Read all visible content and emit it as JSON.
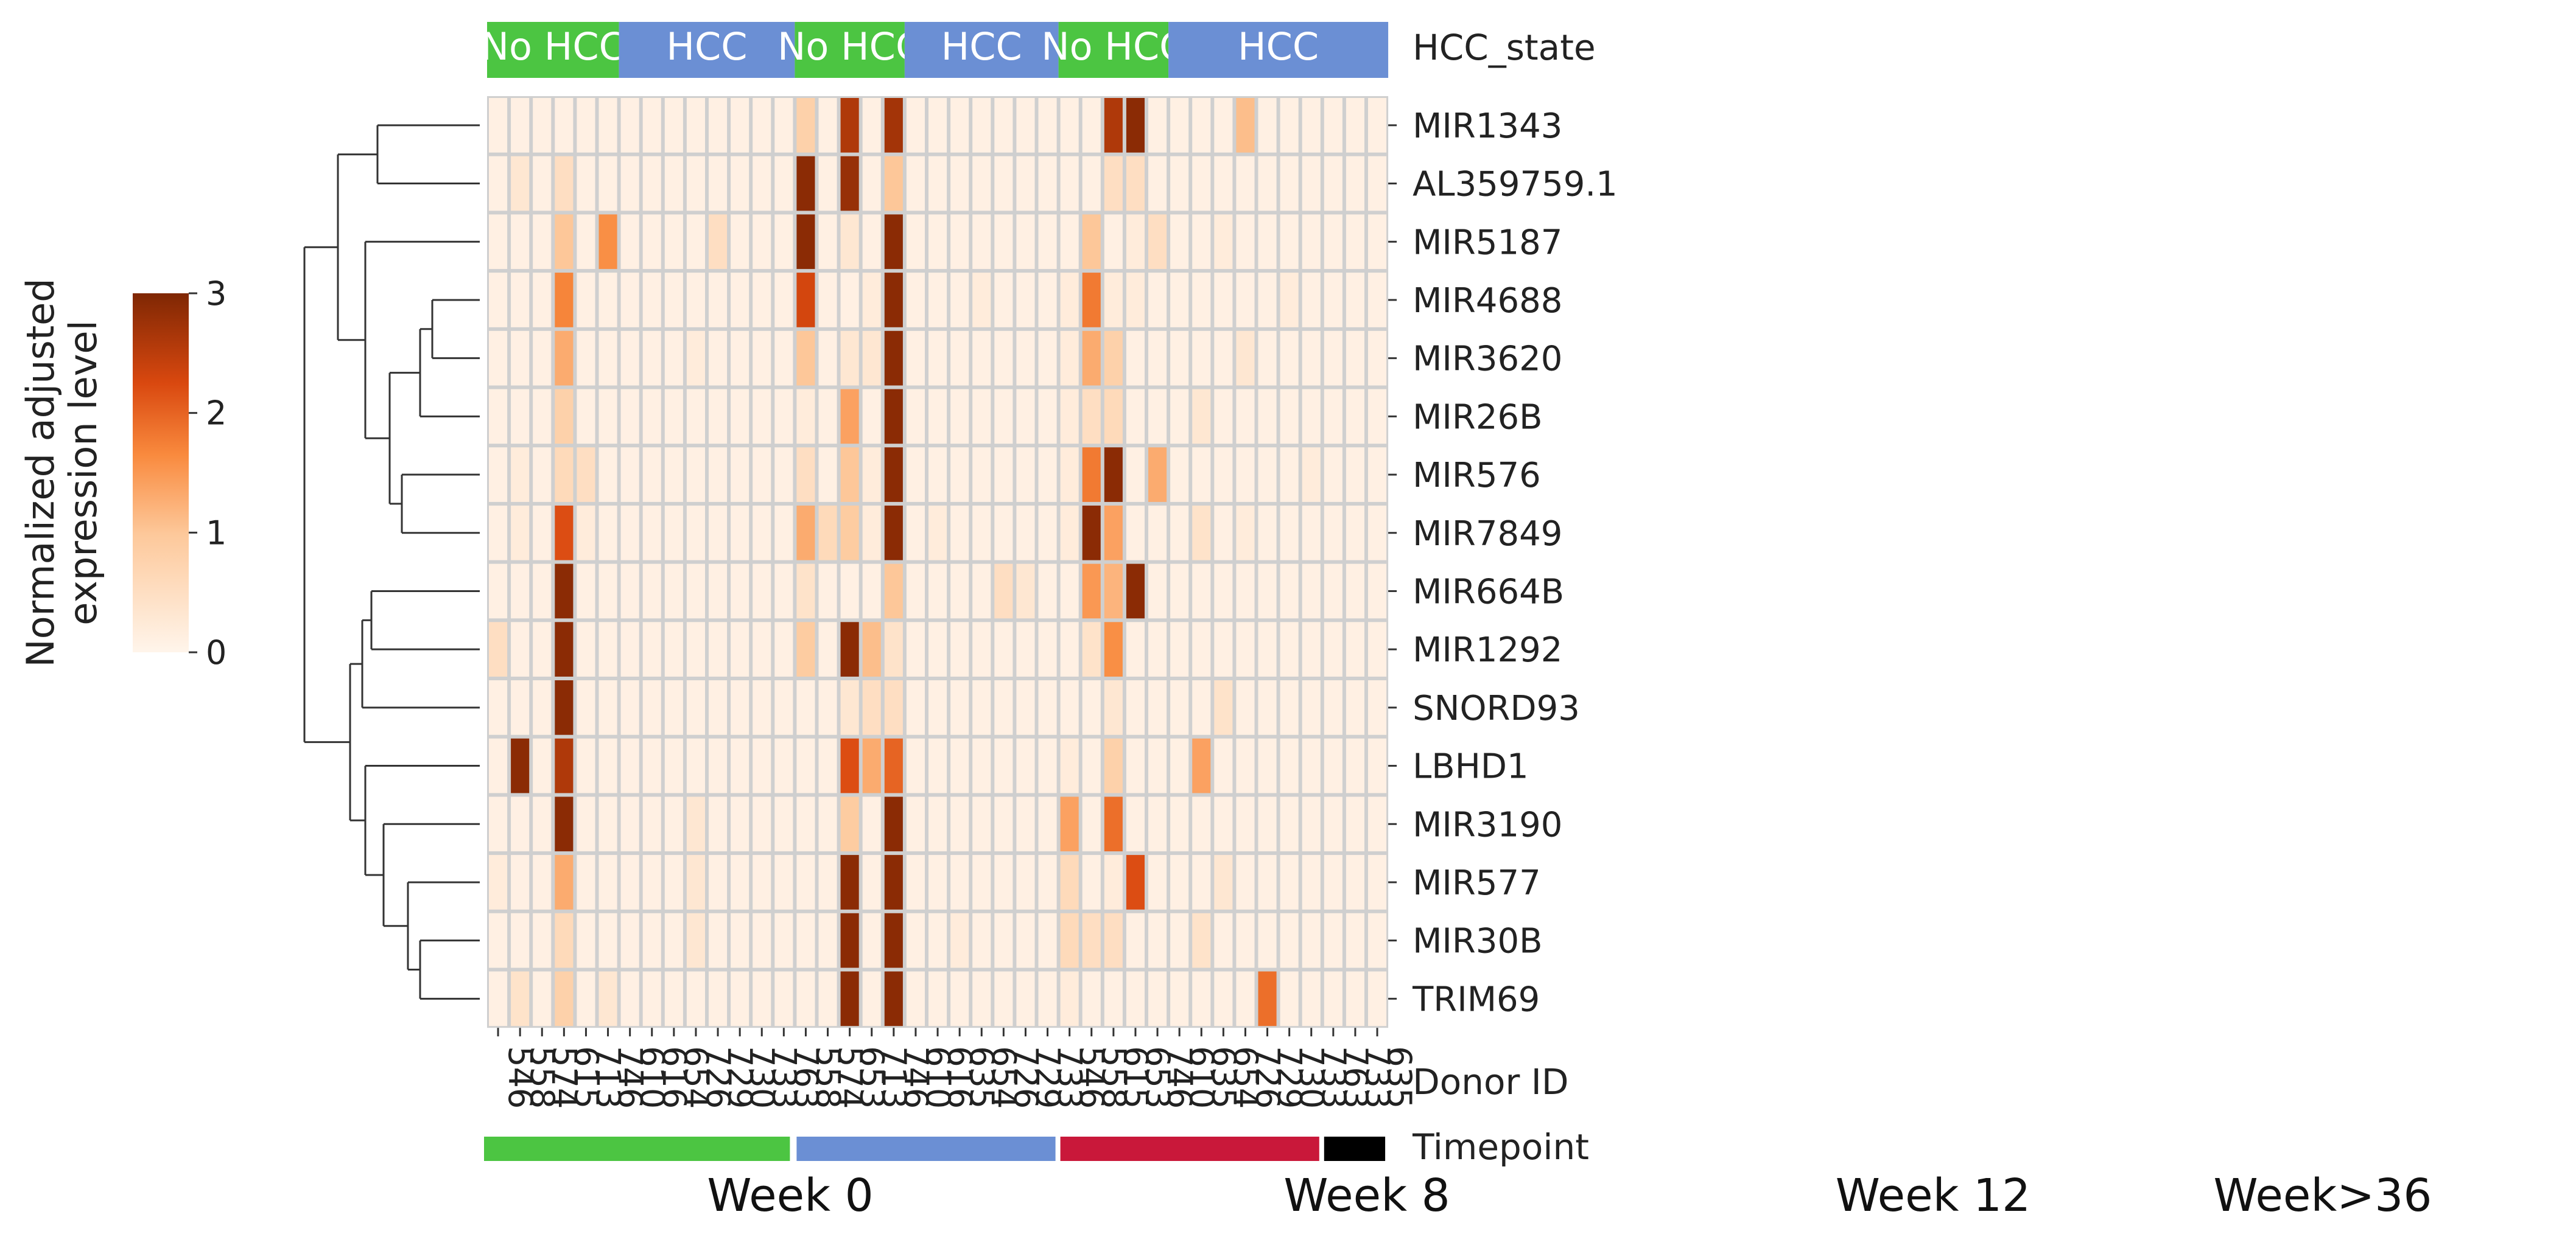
{
  "chart_data": {
    "type": "heatmap",
    "title": "",
    "colorbar": {
      "label_line1": "Normalized adjusted",
      "label_line2": "expression level",
      "min": 0,
      "max": 3,
      "ticks": [
        "0",
        "1",
        "2",
        "3"
      ]
    },
    "x_axis_label": "Donor ID",
    "hcc_state_label": "HCC_state",
    "timepoint_label": "Timepoint",
    "columns": [
      "546",
      "558",
      "574",
      "615",
      "713",
      "746",
      "610",
      "616",
      "654",
      "726",
      "729",
      "730",
      "733",
      "763",
      "558",
      "574",
      "653",
      "713",
      "746",
      "610",
      "616",
      "635",
      "654",
      "726",
      "729",
      "733",
      "546",
      "558",
      "615",
      "653",
      "746",
      "610",
      "635",
      "654",
      "726",
      "729",
      "730",
      "733",
      "763",
      "733",
      "635"
    ],
    "hcc_state_groups": [
      {
        "label": "No HCC",
        "start": 0,
        "end": 6,
        "color": "#4cc542"
      },
      {
        "label": "HCC",
        "start": 6,
        "end": 14,
        "color": "#6b8fd4"
      },
      {
        "label": "No HCC",
        "start": 14,
        "end": 19,
        "color": "#4cc542"
      },
      {
        "label": "HCC",
        "start": 19,
        "end": 26,
        "color": "#6b8fd4"
      },
      {
        "label": "No HCC",
        "start": 26,
        "end": 31,
        "color": "#4cc542"
      },
      {
        "label": "HCC",
        "start": 31,
        "end": 41,
        "color": "#6b8fd4"
      }
    ],
    "timepoints": [
      {
        "label": "Week 0",
        "start": 0,
        "end": 14,
        "color": "#4cc542"
      },
      {
        "label": "Week 8",
        "start": 14,
        "end": 26,
        "color": "#6b8fd4"
      },
      {
        "label": "Week 12",
        "start": 26,
        "end": 38,
        "color": "#c9183a"
      },
      {
        "label": "Week>36",
        "start": 38,
        "end": 41,
        "color": "#000000"
      }
    ],
    "rows": [
      "MIR1343",
      "AL359759.1",
      "MIR5187",
      "MIR4688",
      "MIR3620",
      "MIR26B",
      "MIR576",
      "MIR7849",
      "MIR664B",
      "MIR1292",
      "SNORD93",
      "LBHD1",
      "MIR3190",
      "MIR577",
      "MIR30B",
      "TRIM69"
    ],
    "values": [
      [
        0.1,
        0.1,
        0.1,
        0.1,
        0.1,
        0.1,
        0.1,
        0.1,
        0.1,
        0.1,
        0.1,
        0.1,
        0.1,
        0.1,
        0.8,
        0.1,
        2.6,
        0.1,
        2.7,
        0.1,
        0.1,
        0.1,
        0.1,
        0.1,
        0.1,
        0.1,
        0.1,
        0.1,
        2.6,
        2.9,
        0.1,
        0.1,
        0.1,
        0.1,
        1.1,
        0.1,
        0.1,
        0.1,
        0.1,
        0.1,
        0.1
      ],
      [
        0.1,
        0.3,
        0.1,
        0.5,
        0.1,
        0.1,
        0.1,
        0.1,
        0.1,
        0.1,
        0.1,
        0.1,
        0.1,
        0.1,
        2.9,
        0.1,
        2.8,
        0.1,
        1.0,
        0.1,
        0.1,
        0.1,
        0.1,
        0.1,
        0.1,
        0.1,
        0.1,
        0.1,
        0.5,
        0.5,
        0.1,
        0.1,
        0.1,
        0.1,
        0.1,
        0.1,
        0.1,
        0.1,
        0.1,
        0.1,
        0.1
      ],
      [
        0.1,
        0.1,
        0.1,
        1.0,
        0.1,
        1.6,
        0.1,
        0.1,
        0.1,
        0.1,
        0.5,
        0.1,
        0.1,
        0.1,
        2.9,
        0.1,
        0.3,
        0.1,
        2.9,
        0.1,
        0.1,
        0.1,
        0.1,
        0.1,
        0.1,
        0.1,
        0.1,
        1.0,
        0.1,
        0.2,
        0.5,
        0.1,
        0.1,
        0.2,
        0.1,
        0.1,
        0.1,
        0.1,
        0.1,
        0.1,
        0.1
      ],
      [
        0.1,
        0.1,
        0.1,
        1.7,
        0.1,
        0.1,
        0.1,
        0.1,
        0.1,
        0.1,
        0.1,
        0.1,
        0.1,
        0.1,
        2.3,
        0.1,
        0.1,
        0.2,
        2.9,
        0.1,
        0.1,
        0.1,
        0.2,
        0.1,
        0.1,
        0.1,
        0.2,
        1.8,
        0.2,
        0.2,
        0.1,
        0.1,
        0.1,
        0.1,
        0.1,
        0.1,
        0.2,
        0.1,
        0.1,
        0.1,
        0.1
      ],
      [
        0.1,
        0.1,
        0.1,
        1.3,
        0.1,
        0.1,
        0.1,
        0.1,
        0.1,
        0.2,
        0.1,
        0.1,
        0.1,
        0.1,
        1.0,
        0.1,
        0.3,
        0.3,
        2.9,
        0.1,
        0.1,
        0.1,
        0.1,
        0.1,
        0.1,
        0.1,
        0.2,
        1.3,
        0.8,
        0.1,
        0.1,
        0.1,
        0.1,
        0.1,
        0.3,
        0.1,
        0.1,
        0.1,
        0.1,
        0.1,
        0.1
      ],
      [
        0.1,
        0.1,
        0.1,
        0.8,
        0.1,
        0.1,
        0.1,
        0.1,
        0.1,
        0.1,
        0.1,
        0.1,
        0.1,
        0.1,
        0.2,
        0.1,
        1.4,
        0.1,
        2.9,
        0.1,
        0.1,
        0.1,
        0.1,
        0.1,
        0.1,
        0.1,
        0.2,
        0.5,
        0.6,
        0.1,
        0.1,
        0.1,
        0.3,
        0.1,
        0.1,
        0.1,
        0.1,
        0.1,
        0.1,
        0.1,
        0.1
      ],
      [
        0.1,
        0.2,
        0.1,
        0.6,
        0.5,
        0.1,
        0.1,
        0.1,
        0.1,
        0.1,
        0.1,
        0.1,
        0.1,
        0.1,
        0.5,
        0.1,
        1.0,
        0.2,
        2.9,
        0.1,
        0.1,
        0.1,
        0.1,
        0.1,
        0.1,
        0.1,
        0.2,
        1.8,
        2.9,
        0.1,
        1.3,
        0.1,
        0.1,
        0.1,
        0.1,
        0.1,
        0.1,
        0.2,
        0.1,
        0.1,
        0.1
      ],
      [
        0.1,
        0.2,
        0.1,
        2.2,
        0.2,
        0.1,
        0.1,
        0.1,
        0.1,
        0.1,
        0.1,
        0.1,
        0.1,
        0.1,
        1.3,
        0.6,
        0.9,
        0.2,
        2.9,
        0.1,
        0.2,
        0.1,
        0.1,
        0.1,
        0.1,
        0.1,
        0.2,
        2.9,
        1.4,
        0.1,
        0.1,
        0.1,
        0.4,
        0.1,
        0.2,
        0.1,
        0.1,
        0.1,
        0.1,
        0.1,
        0.1
      ],
      [
        0.1,
        0.1,
        0.1,
        2.9,
        0.1,
        0.1,
        0.1,
        0.1,
        0.1,
        0.1,
        0.1,
        0.1,
        0.1,
        0.1,
        0.4,
        0.1,
        0.1,
        0.1,
        1.0,
        0.1,
        0.1,
        0.1,
        0.1,
        0.5,
        0.3,
        0.1,
        0.1,
        1.5,
        1.2,
        2.9,
        0.1,
        0.1,
        0.1,
        0.1,
        0.1,
        0.1,
        0.1,
        0.1,
        0.1,
        0.1,
        0.1
      ],
      [
        0.5,
        0.1,
        0.1,
        2.9,
        0.1,
        0.1,
        0.1,
        0.1,
        0.1,
        0.1,
        0.1,
        0.1,
        0.1,
        0.1,
        0.9,
        0.1,
        2.9,
        1.1,
        0.4,
        0.1,
        0.1,
        0.1,
        0.1,
        0.1,
        0.1,
        0.1,
        0.1,
        0.4,
        1.6,
        0.1,
        0.1,
        0.1,
        0.1,
        0.1,
        0.1,
        0.1,
        0.1,
        0.1,
        0.1,
        0.1,
        0.1
      ],
      [
        0.1,
        0.1,
        0.1,
        2.9,
        0.1,
        0.1,
        0.1,
        0.1,
        0.1,
        0.1,
        0.1,
        0.1,
        0.1,
        0.1,
        0.1,
        0.1,
        0.3,
        0.5,
        0.5,
        0.1,
        0.1,
        0.1,
        0.1,
        0.1,
        0.1,
        0.1,
        0.1,
        0.1,
        0.3,
        0.1,
        0.1,
        0.1,
        0.1,
        0.4,
        0.1,
        0.1,
        0.1,
        0.1,
        0.1,
        0.1,
        0.1
      ],
      [
        0.1,
        2.9,
        0.1,
        2.6,
        0.1,
        0.1,
        0.1,
        0.1,
        0.1,
        0.1,
        0.1,
        0.1,
        0.1,
        0.1,
        0.1,
        0.1,
        2.2,
        1.3,
        2.0,
        0.1,
        0.1,
        0.1,
        0.1,
        0.1,
        0.1,
        0.1,
        0.2,
        0.1,
        0.8,
        0.1,
        0.1,
        0.1,
        1.4,
        0.1,
        0.1,
        0.1,
        0.1,
        0.1,
        0.1,
        0.1,
        0.1
      ],
      [
        0.1,
        0.1,
        0.1,
        2.9,
        0.1,
        0.1,
        0.1,
        0.1,
        0.1,
        0.3,
        0.1,
        0.1,
        0.1,
        0.1,
        0.1,
        0.1,
        0.9,
        0.1,
        2.9,
        0.1,
        0.1,
        0.1,
        0.1,
        0.1,
        0.1,
        0.1,
        1.4,
        0.1,
        1.9,
        0.1,
        0.1,
        0.1,
        0.1,
        0.1,
        0.1,
        0.1,
        0.1,
        0.1,
        0.1,
        0.1,
        0.1
      ],
      [
        0.2,
        0.1,
        0.1,
        1.3,
        0.1,
        0.1,
        0.1,
        0.1,
        0.1,
        0.3,
        0.1,
        0.1,
        0.1,
        0.1,
        0.1,
        0.1,
        2.9,
        0.1,
        2.9,
        0.1,
        0.1,
        0.1,
        0.1,
        0.1,
        0.1,
        0.1,
        0.6,
        0.1,
        0.2,
        2.2,
        0.1,
        0.1,
        0.1,
        0.3,
        0.1,
        0.1,
        0.1,
        0.1,
        0.1,
        0.1,
        0.1
      ],
      [
        0.1,
        0.1,
        0.1,
        0.6,
        0.1,
        0.1,
        0.1,
        0.1,
        0.1,
        0.3,
        0.1,
        0.1,
        0.1,
        0.1,
        0.1,
        0.1,
        2.9,
        0.1,
        2.9,
        0.1,
        0.1,
        0.2,
        0.1,
        0.1,
        0.1,
        0.1,
        0.6,
        0.5,
        0.5,
        0.1,
        0.1,
        0.1,
        0.4,
        0.1,
        0.1,
        0.1,
        0.1,
        0.1,
        0.1,
        0.1,
        0.1
      ],
      [
        0.1,
        0.4,
        0.1,
        0.8,
        0.1,
        0.3,
        0.1,
        0.1,
        0.1,
        0.1,
        0.1,
        0.1,
        0.1,
        0.1,
        0.1,
        0.1,
        2.9,
        0.1,
        2.9,
        0.1,
        0.1,
        0.1,
        0.1,
        0.1,
        0.1,
        0.1,
        0.2,
        0.1,
        0.1,
        0.1,
        0.1,
        0.1,
        0.1,
        0.1,
        0.1,
        1.9,
        0.1,
        0.1,
        0.1,
        0.1,
        0.1
      ]
    ],
    "row_order_dendrogram": "left"
  }
}
